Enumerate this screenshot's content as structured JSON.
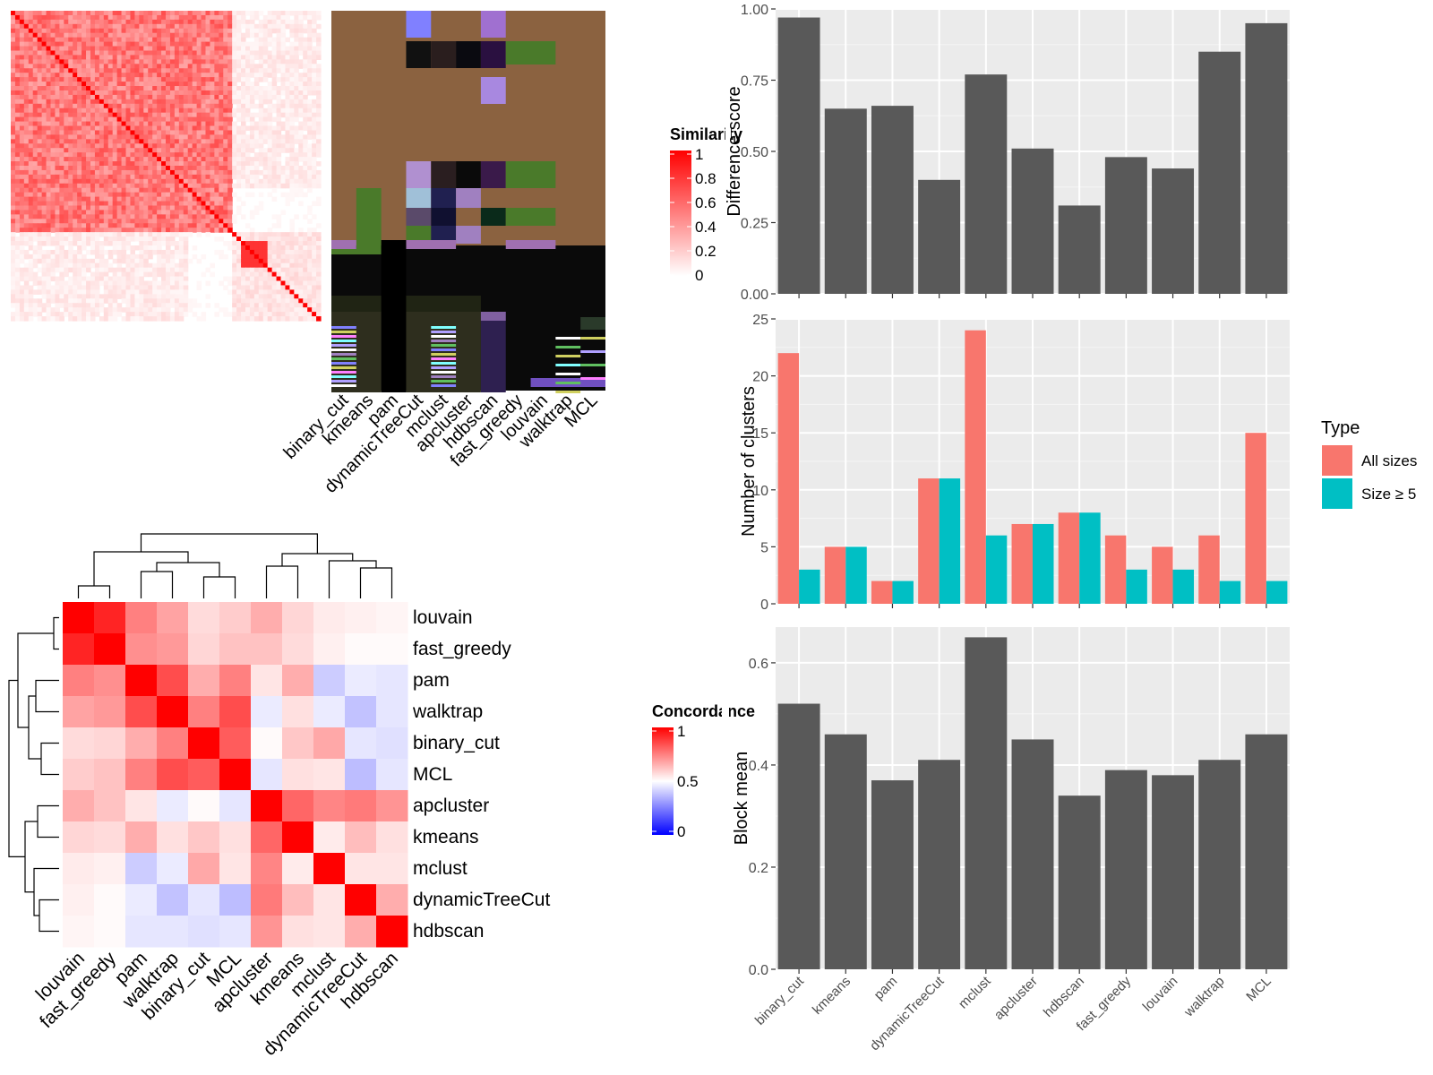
{
  "methods": [
    "binary_cut",
    "kmeans",
    "pam",
    "dynamicTreeCut",
    "mclust",
    "apcluster",
    "hdbscan",
    "fast_greedy",
    "louvain",
    "walktrap",
    "MCL"
  ],
  "similarity_panel": {
    "legend_title": "Similarity",
    "legend_ticks": [
      "1",
      "0.8",
      "0.6",
      "0.4",
      "0.2",
      "0"
    ]
  },
  "concordance_panel": {
    "legend_title": "Concordance",
    "legend_ticks": [
      "1",
      "0.5",
      "0"
    ],
    "order": [
      "louvain",
      "fast_greedy",
      "pam",
      "walktrap",
      "binary_cut",
      "MCL",
      "apcluster",
      "kmeans",
      "mclust",
      "dynamicTreeCut",
      "hdbscan"
    ]
  },
  "colors": {
    "bar": "#595959",
    "panel_bg": "#ebebeb",
    "all_sizes": "#f8766d",
    "size_ge5": "#00bfc4"
  },
  "chart_data": [
    {
      "type": "bar",
      "ylabel": "Difference score",
      "xlabel": "",
      "ylim": [
        0,
        1
      ],
      "yticks": [
        "0.00",
        "0.25",
        "0.50",
        "0.75",
        "1.00"
      ],
      "categories": [
        "binary_cut",
        "kmeans",
        "pam",
        "dynamicTreeCut",
        "mclust",
        "apcluster",
        "hdbscan",
        "fast_greedy",
        "louvain",
        "walktrap",
        "MCL"
      ],
      "values": [
        0.97,
        0.65,
        0.66,
        0.4,
        0.77,
        0.51,
        0.31,
        0.48,
        0.44,
        0.85,
        0.95
      ],
      "grid": true
    },
    {
      "type": "bar",
      "ylabel": "Number of clusters",
      "xlabel": "",
      "ylim": [
        0,
        25
      ],
      "yticks": [
        "0",
        "5",
        "10",
        "15",
        "20",
        "25"
      ],
      "legend_title": "Type",
      "legend_position": "right",
      "categories": [
        "binary_cut",
        "kmeans",
        "pam",
        "dynamicTreeCut",
        "mclust",
        "apcluster",
        "hdbscan",
        "fast_greedy",
        "louvain",
        "walktrap",
        "MCL"
      ],
      "series": [
        {
          "name": "All sizes",
          "values": [
            22,
            5,
            2,
            11,
            24,
            7,
            8,
            6,
            5,
            6,
            15
          ]
        },
        {
          "name": "Size ≥ 5",
          "values": [
            3,
            5,
            2,
            11,
            6,
            7,
            8,
            3,
            3,
            2,
            2
          ]
        }
      ],
      "grid": true
    },
    {
      "type": "bar",
      "ylabel": "Block mean",
      "xlabel": "",
      "ylim": [
        0,
        0.67
      ],
      "yticks": [
        "0.0",
        "0.2",
        "0.4",
        "0.6"
      ],
      "categories": [
        "binary_cut",
        "kmeans",
        "pam",
        "dynamicTreeCut",
        "mclust",
        "apcluster",
        "hdbscan",
        "fast_greedy",
        "louvain",
        "walktrap",
        "MCL"
      ],
      "values": [
        0.52,
        0.46,
        0.37,
        0.41,
        0.65,
        0.45,
        0.34,
        0.39,
        0.38,
        0.41,
        0.46
      ],
      "grid": true
    },
    {
      "type": "heatmap",
      "legend_title": "Concordance",
      "rows": [
        "louvain",
        "fast_greedy",
        "pam",
        "walktrap",
        "binary_cut",
        "MCL",
        "apcluster",
        "kmeans",
        "mclust",
        "dynamicTreeCut",
        "hdbscan"
      ],
      "cols": [
        "louvain",
        "fast_greedy",
        "pam",
        "walktrap",
        "binary_cut",
        "MCL",
        "apcluster",
        "kmeans",
        "mclust",
        "dynamicTreeCut",
        "hdbscan"
      ],
      "values": [
        [
          1.0,
          0.93,
          0.75,
          0.68,
          0.57,
          0.6,
          0.66,
          0.58,
          0.54,
          0.53,
          0.52
        ],
        [
          0.93,
          1.0,
          0.72,
          0.7,
          0.58,
          0.62,
          0.62,
          0.57,
          0.53,
          0.51,
          0.51
        ],
        [
          0.75,
          0.72,
          1.0,
          0.85,
          0.66,
          0.75,
          0.55,
          0.66,
          0.4,
          0.46,
          0.45
        ],
        [
          0.68,
          0.7,
          0.85,
          1.0,
          0.75,
          0.85,
          0.46,
          0.56,
          0.46,
          0.38,
          0.45
        ],
        [
          0.57,
          0.58,
          0.66,
          0.75,
          1.0,
          0.82,
          0.51,
          0.61,
          0.67,
          0.45,
          0.44
        ],
        [
          0.6,
          0.62,
          0.75,
          0.85,
          0.82,
          1.0,
          0.45,
          0.56,
          0.55,
          0.37,
          0.45
        ],
        [
          0.66,
          0.62,
          0.55,
          0.46,
          0.51,
          0.45,
          1.0,
          0.8,
          0.74,
          0.76,
          0.71
        ],
        [
          0.58,
          0.57,
          0.66,
          0.56,
          0.61,
          0.56,
          0.8,
          1.0,
          0.54,
          0.63,
          0.56
        ],
        [
          0.54,
          0.53,
          0.4,
          0.46,
          0.67,
          0.55,
          0.74,
          0.54,
          1.0,
          0.55,
          0.55
        ],
        [
          0.53,
          0.51,
          0.46,
          0.38,
          0.45,
          0.37,
          0.76,
          0.63,
          0.55,
          1.0,
          0.66
        ],
        [
          0.52,
          0.51,
          0.45,
          0.45,
          0.44,
          0.45,
          0.71,
          0.56,
          0.55,
          0.66,
          1.0
        ]
      ]
    }
  ]
}
